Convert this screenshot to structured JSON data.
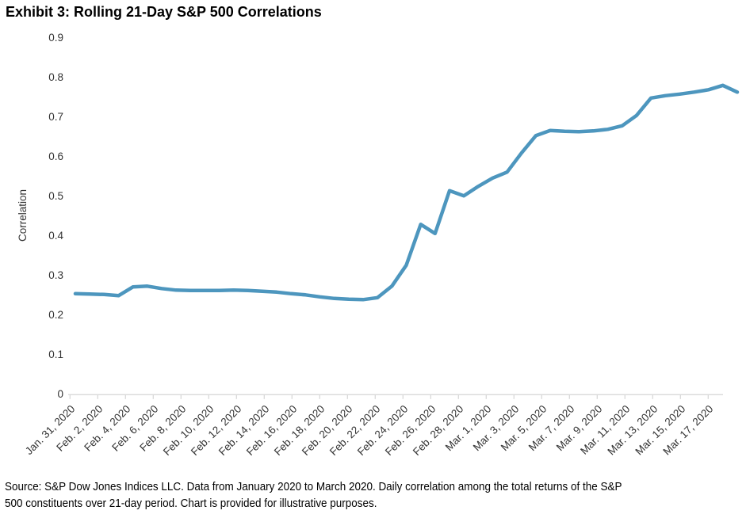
{
  "title": "Exhibit 3: Rolling 21-Day S&P 500 Correlations",
  "source_note": {
    "line1": "Source: S&P Dow Jones Indices LLC. Data from January 2020 to March 2020. Daily correlation among the total returns of the S&P",
    "line2": "500 constituents over 21-day period. Chart is provided for illustrative purposes."
  },
  "chart_data": {
    "type": "line",
    "title": "Exhibit 3: Rolling 21-Day S&P 500 Correlations",
    "ylabel": "Correlation",
    "xlabel": "",
    "ylim": [
      0,
      0.9
    ],
    "yticks": [
      0,
      0.1,
      0.2,
      0.3,
      0.4,
      0.5,
      0.6,
      0.7,
      0.8,
      0.9
    ],
    "grid": false,
    "legend": "none",
    "line_color": "#4d96be",
    "axis_color": "#d9d9d9",
    "xtick_labels": [
      "Jan. 31, 2020",
      "Feb. 2, 2020",
      "Feb. 4, 2020",
      "Feb. 6, 2020",
      "Feb. 8, 2020",
      "Feb. 10, 2020",
      "Feb. 12, 2020",
      "Feb. 14, 2020",
      "Feb. 16, 2020",
      "Feb. 18, 2020",
      "Feb. 20, 2020",
      "Feb. 22, 2020",
      "Feb. 24, 2020",
      "Feb. 26, 2020",
      "Feb. 28, 2020",
      "Mar. 1, 2020",
      "Mar. 3, 2020",
      "Mar. 5, 2020",
      "Mar. 7, 2020",
      "Mar. 9, 2020",
      "Mar. 11, 2020",
      "Mar. 13, 2020",
      "Mar. 15, 2020",
      "Mar. 17, 2020"
    ],
    "x": [
      "Jan. 31, 2020",
      "Feb. 1, 2020",
      "Feb. 2, 2020",
      "Feb. 3, 2020",
      "Feb. 4, 2020",
      "Feb. 5, 2020",
      "Feb. 6, 2020",
      "Feb. 7, 2020",
      "Feb. 8, 2020",
      "Feb. 9, 2020",
      "Feb. 10, 2020",
      "Feb. 11, 2020",
      "Feb. 12, 2020",
      "Feb. 13, 2020",
      "Feb. 14, 2020",
      "Feb. 15, 2020",
      "Feb. 16, 2020",
      "Feb. 17, 2020",
      "Feb. 18, 2020",
      "Feb. 19, 2020",
      "Feb. 20, 2020",
      "Feb. 21, 2020",
      "Feb. 22, 2020",
      "Feb. 23, 2020",
      "Feb. 24, 2020",
      "Feb. 25, 2020",
      "Feb. 26, 2020",
      "Feb. 27, 2020",
      "Feb. 28, 2020",
      "Feb. 29, 2020",
      "Mar. 1, 2020",
      "Mar. 2, 2020",
      "Mar. 3, 2020",
      "Mar. 4, 2020",
      "Mar. 5, 2020",
      "Mar. 6, 2020",
      "Mar. 7, 2020",
      "Mar. 8, 2020",
      "Mar. 9, 2020",
      "Mar. 10, 2020",
      "Mar. 11, 2020",
      "Mar. 12, 2020",
      "Mar. 13, 2020",
      "Mar. 14, 2020",
      "Mar. 15, 2020",
      "Mar. 16, 2020",
      "Mar. 17, 2020"
    ],
    "values": [
      0.253,
      0.252,
      0.251,
      0.248,
      0.27,
      0.272,
      0.266,
      0.262,
      0.261,
      0.261,
      0.261,
      0.262,
      0.261,
      0.259,
      0.257,
      0.253,
      0.25,
      0.245,
      0.241,
      0.239,
      0.238,
      0.243,
      0.272,
      0.325,
      0.428,
      0.405,
      0.513,
      0.5,
      0.524,
      0.545,
      0.56,
      0.608,
      0.652,
      0.665,
      0.663,
      0.662,
      0.664,
      0.668,
      0.677,
      0.703,
      0.747,
      0.753,
      0.757,
      0.762,
      0.768,
      0.779,
      0.762
    ]
  }
}
